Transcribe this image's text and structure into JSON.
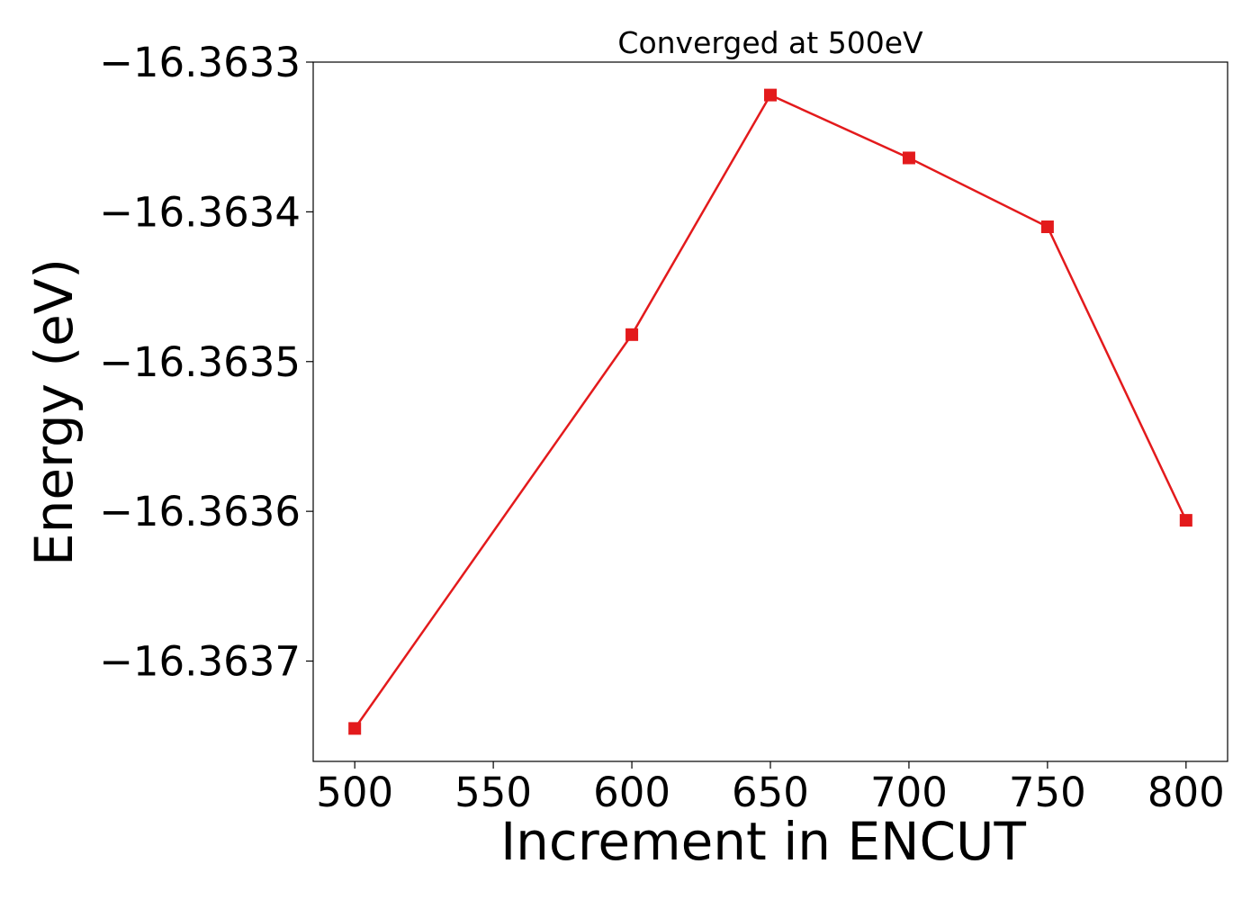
{
  "chart_data": {
    "type": "line",
    "title": "Converged at 500eV",
    "xlabel": "Increment in ENCUT",
    "ylabel": "Energy (eV)",
    "x": [
      500,
      600,
      650,
      700,
      750,
      800
    ],
    "series": [
      {
        "values": [
          -16.363745,
          -16.363482,
          -16.363322,
          -16.363364,
          -16.36341,
          -16.363606
        ],
        "color": "#e31a1c",
        "marker": "square"
      }
    ],
    "xticks": [
      500,
      550,
      600,
      650,
      700,
      750,
      800
    ],
    "xtick_labels": [
      "500",
      "550",
      "600",
      "650",
      "700",
      "750",
      "800"
    ],
    "yticks": [
      -16.3637,
      -16.3636,
      -16.3635,
      -16.3634,
      -16.3633
    ],
    "ytick_labels": [
      "−16.3637",
      "−16.3636",
      "−16.3635",
      "−16.3634",
      "−16.3633"
    ],
    "xlim": [
      485,
      815
    ],
    "ylim": [
      -16.363767,
      -16.3633
    ],
    "grid": false,
    "legend": "none"
  }
}
